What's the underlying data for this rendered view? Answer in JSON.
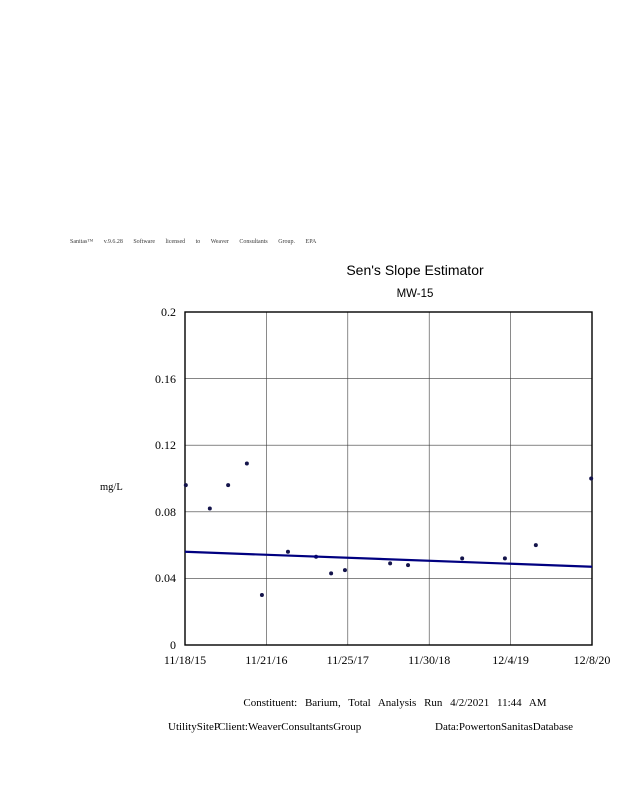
{
  "header": {
    "license_line": "Sanitas™ v.9.6.28 Software licensed to Weaver Consultants Group. EPA"
  },
  "chart": {
    "title": "Sen's Slope Estimator",
    "subtitle": "MW-15",
    "ylabel": "mg/L"
  },
  "chart_data": {
    "type": "scatter",
    "title": "Sen's Slope Estimator",
    "subtitle": "MW-15",
    "xlabel": "",
    "ylabel": "mg/L",
    "ylim": [
      0,
      0.2
    ],
    "yticks": [
      0,
      0.04,
      0.08,
      0.12,
      0.16,
      0.2
    ],
    "ytick_labels": [
      "0",
      "0.04",
      "0.08",
      "0.12",
      "0.16",
      "0.2"
    ],
    "xtick_labels": [
      "11/18/15",
      "11/21/16",
      "11/25/17",
      "11/30/18",
      "12/4/19",
      "12/8/20"
    ],
    "grid": true,
    "legend_position": "none",
    "point_color": "#14144b",
    "trend_color": "#000080",
    "series": [
      {
        "name": "Barium, Total concentration",
        "type": "scatter",
        "color": "#14144b",
        "points": [
          {
            "x_frac": 0.002,
            "date_approx": "11/18/15",
            "mgL": 0.096
          },
          {
            "x_frac": 0.061,
            "date_approx": "3/10/16",
            "mgL": 0.082
          },
          {
            "x_frac": 0.106,
            "date_approx": "5/31/16",
            "mgL": 0.096
          },
          {
            "x_frac": 0.152,
            "date_approx": "8/25/16",
            "mgL": 0.109
          },
          {
            "x_frac": 0.189,
            "date_approx": "11/2/16",
            "mgL": 0.03
          },
          {
            "x_frac": 0.253,
            "date_approx": "3/1/17",
            "mgL": 0.056
          },
          {
            "x_frac": 0.322,
            "date_approx": "7/6/17",
            "mgL": 0.053
          },
          {
            "x_frac": 0.359,
            "date_approx": "9/12/17",
            "mgL": 0.043
          },
          {
            "x_frac": 0.393,
            "date_approx": "11/14/17",
            "mgL": 0.045
          },
          {
            "x_frac": 0.504,
            "date_approx": "6/6/18",
            "mgL": 0.049
          },
          {
            "x_frac": 0.548,
            "date_approx": "8/27/18",
            "mgL": 0.048
          },
          {
            "x_frac": 0.681,
            "date_approx": "4/29/19",
            "mgL": 0.052
          },
          {
            "x_frac": 0.786,
            "date_approx": "11/10/19",
            "mgL": 0.052
          },
          {
            "x_frac": 0.862,
            "date_approx": "3/30/20",
            "mgL": 0.06
          },
          {
            "x_frac": 0.998,
            "date_approx": "12/8/20",
            "mgL": 0.1
          }
        ]
      },
      {
        "name": "Sen's slope trend line",
        "type": "line",
        "color": "#000080",
        "points": [
          {
            "x_frac": 0.0,
            "mgL": 0.056
          },
          {
            "x_frac": 1.0,
            "mgL": 0.047
          }
        ]
      }
    ]
  },
  "footer": {
    "line1": "Constituent: Barium, Total Analysis Run 4/2/2021 11:44 AM",
    "site": "UtilitySiteP",
    "client": "Client:WeaverConsultantsGroup",
    "data_source": "Data:PowertonSanitasDatabase"
  }
}
